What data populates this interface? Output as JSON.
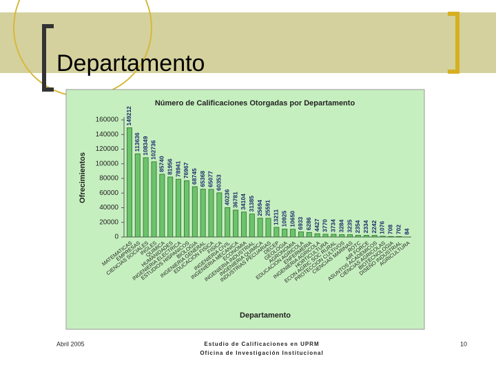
{
  "slide": {
    "title": "Departamento",
    "footer_left": "Abril 2005",
    "footer_center": [
      "Estudio de Calificaciones en UPRM",
      "Oficina de Investigación Institucional"
    ],
    "page_number": "10"
  },
  "chart_data": {
    "type": "bar",
    "title": "Número de Calificaciones Otorgadas por Departamento",
    "x_label": "Departamento",
    "y_label": "Ofrecimientos",
    "categories": [
      "MATEMATICAS",
      "EMPRESAS",
      "CIENCIAS SOCIALES",
      "INGLES",
      "QUIMICA",
      "HUMANIDADES",
      "INGENIERIA ELECTRICA",
      "ESTUDIOS HISPANICOS",
      "BIOLOGIA",
      "INGENIERIA GENERAL",
      "EDUCACION FISICA",
      "FISICA",
      "INGENIERIA CIVIL",
      "INGENIERIA MECANICA",
      "ECONOMIA",
      "INGENIERIA INDUSTRIAL",
      "INGENIERIA QUIMICA",
      "INDUSTRIAS PECUARIAS",
      "DECEP",
      "GEOLOGIA",
      "AGRONOMIA",
      "EDUCACION AGRICOLA",
      "ENFERMERIA",
      "INGENIERIA AGRICOLA",
      "HORTICULTURA",
      "ECON AGRIC SOC RURAL",
      "PROTECCION CULTIVOS",
      "CIENCIAS MARINAS",
      "ROTC",
      "AIR FORCE",
      "ASUNTOS ACADEMICOS",
      "CIENCIAS AGRICOLAS",
      "BIOTECNOLOGIA",
      "DISEÑO INDUSTRIAL",
      "AGRICULTURA"
    ],
    "values": [
      149212,
      113636,
      108349,
      102736,
      85740,
      81956,
      78941,
      76967,
      68745,
      65368,
      65077,
      60353,
      40236,
      36781,
      34104,
      31385,
      25694,
      25591,
      13211,
      10925,
      10650,
      6933,
      6286,
      4427,
      3770,
      3734,
      3284,
      3235,
      2354,
      2334,
      2242,
      1076,
      708,
      702,
      84
    ],
    "color": "#6cc36c",
    "ylim": [
      0,
      160000
    ],
    "yticks": [
      0,
      20000,
      40000,
      60000,
      80000,
      100000,
      120000,
      140000,
      160000
    ],
    "grid": false
  }
}
